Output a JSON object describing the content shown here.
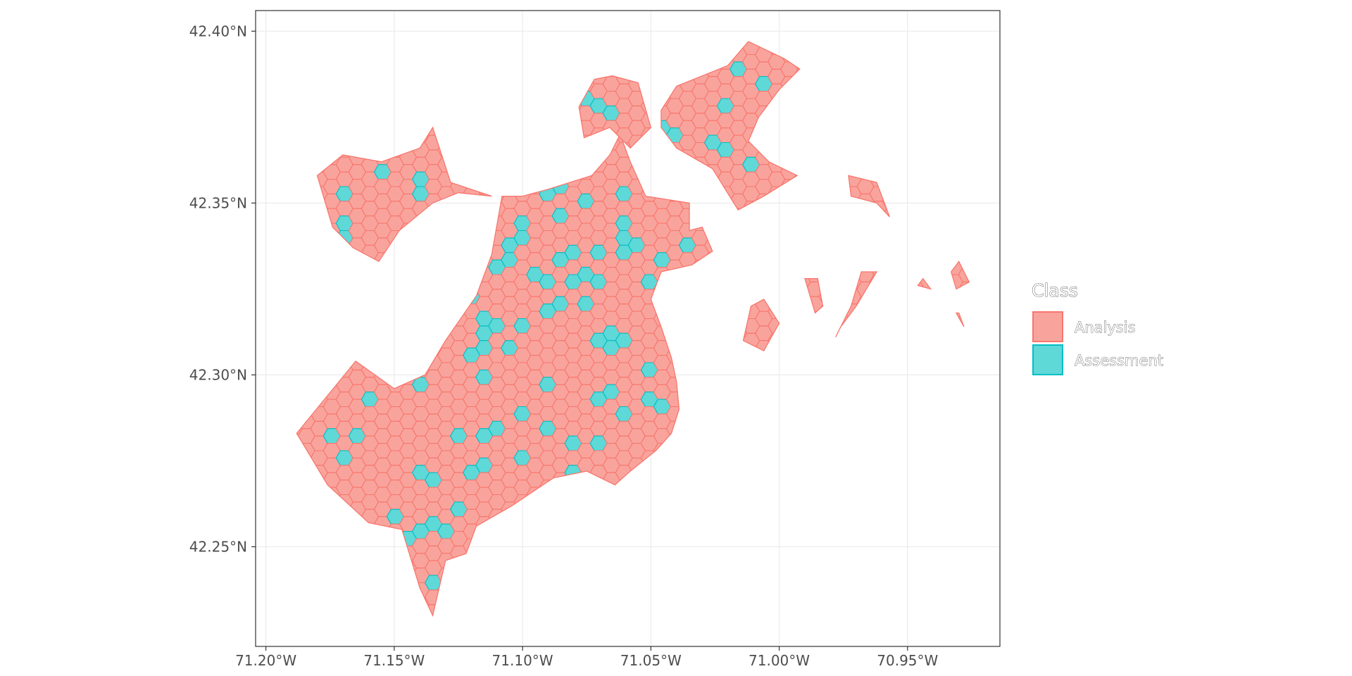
{
  "chart_data": {
    "type": "map",
    "subject": "hexagonal grid over Boston land area",
    "x_axis": {
      "ticks": [
        {
          "value": -71.2,
          "label": "71.20°W"
        },
        {
          "value": -71.15,
          "label": "71.15°W"
        },
        {
          "value": -71.1,
          "label": "71.10°W"
        },
        {
          "value": -71.05,
          "label": "71.05°W"
        },
        {
          "value": -71.0,
          "label": "71.00°W"
        },
        {
          "value": -70.95,
          "label": "70.95°W"
        }
      ],
      "range": [
        -71.204,
        -70.914
      ]
    },
    "y_axis": {
      "ticks": [
        {
          "value": 42.25,
          "label": "42.25°N"
        },
        {
          "value": 42.3,
          "label": "42.30°N"
        },
        {
          "value": 42.35,
          "label": "42.35°N"
        },
        {
          "value": 42.4,
          "label": "42.40°N"
        }
      ],
      "range": [
        42.221,
        42.406
      ]
    },
    "grid": true,
    "legend": {
      "title": "Class",
      "position": "right",
      "entries": [
        {
          "label": "Analysis",
          "fill": "#f8a49d",
          "stroke": "#f8766d"
        },
        {
          "label": "Assessment",
          "fill": "#5fd8d8",
          "stroke": "#00bfc4"
        }
      ]
    },
    "colors": {
      "analysis_fill": "#f8a49d",
      "analysis_stroke": "#f8766d",
      "assessment_fill": "#5fd8d8",
      "assessment_stroke": "#00bfc4",
      "grid": "#ebebeb",
      "panel_border": "#333333"
    },
    "hex_radius_deg": 0.0033,
    "land_regions": [
      {
        "name": "main-boston",
        "polygon": [
          [
            -71.073,
            42.358
          ],
          [
            -71.066,
            42.364
          ],
          [
            -71.062,
            42.37
          ],
          [
            -71.058,
            42.362
          ],
          [
            -71.052,
            42.352
          ],
          [
            -71.035,
            42.35
          ],
          [
            -71.035,
            42.342
          ],
          [
            -71.03,
            42.343
          ],
          [
            -71.026,
            42.336
          ],
          [
            -71.034,
            42.332
          ],
          [
            -71.046,
            42.33
          ],
          [
            -71.05,
            42.322
          ],
          [
            -71.046,
            42.314
          ],
          [
            -71.042,
            42.305
          ],
          [
            -71.04,
            42.298
          ],
          [
            -71.039,
            42.29
          ],
          [
            -71.042,
            42.283
          ],
          [
            -71.048,
            42.278
          ],
          [
            -71.058,
            42.272
          ],
          [
            -71.064,
            42.268
          ],
          [
            -71.075,
            42.272
          ],
          [
            -71.088,
            42.27
          ],
          [
            -71.104,
            42.262
          ],
          [
            -71.118,
            42.256
          ],
          [
            -71.122,
            42.248
          ],
          [
            -71.13,
            42.246
          ],
          [
            -71.135,
            42.23
          ],
          [
            -71.14,
            42.238
          ],
          [
            -71.147,
            42.255
          ],
          [
            -71.16,
            42.257
          ],
          [
            -71.176,
            42.268
          ],
          [
            -71.188,
            42.283
          ],
          [
            -71.165,
            42.304
          ],
          [
            -71.15,
            42.296
          ],
          [
            -71.138,
            42.3
          ],
          [
            -71.13,
            42.31
          ],
          [
            -71.118,
            42.323
          ],
          [
            -71.112,
            42.335
          ],
          [
            -71.108,
            42.352
          ],
          [
            -71.1,
            42.352
          ],
          [
            -71.09,
            42.354
          ]
        ]
      },
      {
        "name": "allston-brighton",
        "polygon": [
          [
            -71.112,
            42.352
          ],
          [
            -71.128,
            42.356
          ],
          [
            -71.135,
            42.372
          ],
          [
            -71.14,
            42.366
          ],
          [
            -71.155,
            42.362
          ],
          [
            -71.17,
            42.364
          ],
          [
            -71.18,
            42.358
          ],
          [
            -71.174,
            42.343
          ],
          [
            -71.166,
            42.337
          ],
          [
            -71.156,
            42.333
          ],
          [
            -71.148,
            42.342
          ],
          [
            -71.135,
            42.35
          ],
          [
            -71.125,
            42.353
          ]
        ]
      },
      {
        "name": "charlestown",
        "polygon": [
          [
            -71.078,
            42.378
          ],
          [
            -71.072,
            42.386
          ],
          [
            -71.065,
            42.387
          ],
          [
            -71.055,
            42.385
          ],
          [
            -71.05,
            42.372
          ],
          [
            -71.058,
            42.366
          ],
          [
            -71.066,
            42.372
          ],
          [
            -71.076,
            42.369
          ]
        ]
      },
      {
        "name": "east-boston",
        "polygon": [
          [
            -71.046,
            42.377
          ],
          [
            -71.04,
            42.384
          ],
          [
            -71.02,
            42.39
          ],
          [
            -71.012,
            42.397
          ],
          [
            -70.998,
            42.392
          ],
          [
            -70.992,
            42.389
          ],
          [
            -71.0,
            42.383
          ],
          [
            -71.008,
            42.375
          ],
          [
            -71.012,
            42.368
          ],
          [
            -71.004,
            42.362
          ],
          [
            -70.993,
            42.358
          ],
          [
            -71.006,
            42.352
          ],
          [
            -71.016,
            42.348
          ],
          [
            -71.026,
            42.36
          ],
          [
            -71.04,
            42.366
          ],
          [
            -71.046,
            42.372
          ]
        ]
      },
      {
        "name": "island-a",
        "polygon": [
          [
            -70.973,
            42.358
          ],
          [
            -70.962,
            42.356
          ],
          [
            -70.957,
            42.346
          ],
          [
            -70.962,
            42.35
          ],
          [
            -70.972,
            42.352
          ]
        ]
      },
      {
        "name": "island-b",
        "polygon": [
          [
            -70.99,
            42.328
          ],
          [
            -70.986,
            42.318
          ],
          [
            -70.983,
            42.32
          ],
          [
            -70.985,
            42.328
          ]
        ]
      },
      {
        "name": "island-c",
        "polygon": [
          [
            -71.006,
            42.322
          ],
          [
            -71.0,
            42.315
          ],
          [
            -71.006,
            42.307
          ],
          [
            -71.014,
            42.31
          ],
          [
            -71.011,
            42.32
          ]
        ]
      },
      {
        "name": "island-d",
        "polygon": [
          [
            -70.962,
            42.33
          ],
          [
            -70.97,
            42.32
          ],
          [
            -70.976,
            42.314
          ],
          [
            -70.978,
            42.311
          ],
          [
            -70.972,
            42.32
          ],
          [
            -70.968,
            42.33
          ]
        ]
      },
      {
        "name": "island-e",
        "polygon": [
          [
            -70.93,
            42.333
          ],
          [
            -70.926,
            42.327
          ],
          [
            -70.931,
            42.325
          ],
          [
            -70.933,
            42.33
          ]
        ]
      },
      {
        "name": "island-f",
        "polygon": [
          [
            -70.946,
            42.326
          ],
          [
            -70.941,
            42.325
          ],
          [
            -70.944,
            42.328
          ]
        ]
      },
      {
        "name": "island-g",
        "polygon": [
          [
            -70.931,
            42.318
          ],
          [
            -70.928,
            42.314
          ],
          [
            -70.93,
            42.318
          ]
        ]
      }
    ],
    "assessment_hexes": [
      [
        -71.17,
        42.352
      ],
      [
        -71.17,
        42.342
      ],
      [
        -71.153,
        42.36
      ],
      [
        -71.141,
        42.356
      ],
      [
        -71.138,
        42.353
      ],
      [
        -71.127,
        42.348
      ],
      [
        -71.073,
        42.38
      ],
      [
        -71.067,
        42.378
      ],
      [
        -71.043,
        42.37
      ],
      [
        -71.028,
        42.369
      ],
      [
        -71.023,
        42.364
      ],
      [
        -71.021,
        42.377
      ],
      [
        -71.014,
        42.388
      ],
      [
        -71.006,
        42.386
      ],
      [
        -71.012,
        42.361
      ],
      [
        -71.083,
        42.357
      ],
      [
        -71.09,
        42.352
      ],
      [
        -71.083,
        42.347
      ],
      [
        -71.074,
        42.352
      ],
      [
        -71.06,
        42.352
      ],
      [
        -71.062,
        42.342
      ],
      [
        -71.072,
        42.336
      ],
      [
        -71.08,
        42.337
      ],
      [
        -71.085,
        42.332
      ],
      [
        -71.098,
        42.342
      ],
      [
        -71.104,
        42.338
      ],
      [
        -71.106,
        42.334
      ],
      [
        -71.093,
        42.328
      ],
      [
        -71.088,
        42.327
      ],
      [
        -71.08,
        42.326
      ],
      [
        -71.075,
        42.33
      ],
      [
        -71.069,
        42.327
      ],
      [
        -71.06,
        42.335
      ],
      [
        -71.054,
        42.336
      ],
      [
        -71.052,
        42.328
      ],
      [
        -71.045,
        42.334
      ],
      [
        -71.034,
        42.338
      ],
      [
        -71.112,
        42.33
      ],
      [
        -71.118,
        42.321
      ],
      [
        -71.113,
        42.318
      ],
      [
        -71.108,
        42.316
      ],
      [
        -71.102,
        42.313
      ],
      [
        -71.092,
        42.317
      ],
      [
        -71.083,
        42.32
      ],
      [
        -71.075,
        42.32
      ],
      [
        -71.068,
        42.309
      ],
      [
        -71.063,
        42.31
      ],
      [
        -71.049,
        42.303
      ],
      [
        -71.118,
        42.304
      ],
      [
        -71.115,
        42.31
      ],
      [
        -71.113,
        42.3
      ],
      [
        -71.103,
        42.308
      ],
      [
        -71.088,
        42.296
      ],
      [
        -71.068,
        42.294
      ],
      [
        -71.14,
        42.297
      ],
      [
        -71.161,
        42.291
      ],
      [
        -71.173,
        42.283
      ],
      [
        -71.163,
        42.281
      ],
      [
        -71.17,
        42.274
      ],
      [
        -71.14,
        42.273
      ],
      [
        -71.135,
        42.268
      ],
      [
        -71.124,
        42.283
      ],
      [
        -71.122,
        42.27
      ],
      [
        -71.115,
        42.274
      ],
      [
        -71.114,
        42.282
      ],
      [
        -71.11,
        42.284
      ],
      [
        -71.102,
        42.287
      ],
      [
        -71.09,
        42.284
      ],
      [
        -71.081,
        42.279
      ],
      [
        -71.072,
        42.281
      ],
      [
        -71.059,
        42.29
      ],
      [
        -71.048,
        42.291
      ],
      [
        -71.124,
        42.26
      ],
      [
        -71.13,
        42.255
      ],
      [
        -71.135,
        42.256
      ],
      [
        -71.141,
        42.256
      ],
      [
        -71.147,
        42.252
      ],
      [
        -71.15,
        42.26
      ],
      [
        -71.125,
        42.262
      ],
      [
        -71.136,
        42.238
      ],
      [
        -71.099,
        42.275
      ],
      [
        -71.081,
        42.272
      ]
    ]
  }
}
